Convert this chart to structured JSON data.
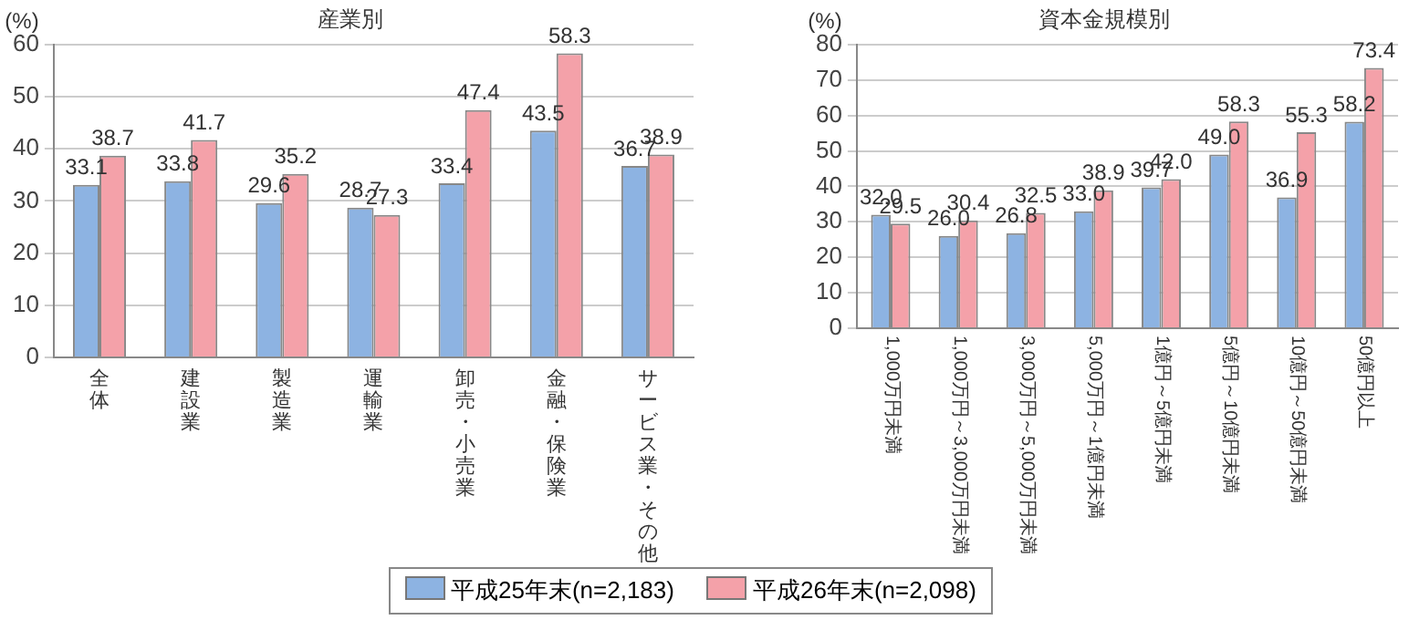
{
  "chart_data": [
    {
      "type": "bar",
      "title": "産業別",
      "ylabel": "(%)",
      "categories": [
        "全体",
        "建設業",
        "製造業",
        "運輸業",
        "卸売・小売業",
        "金融・保険業",
        "サービス業・その他"
      ],
      "series": [
        {
          "name": "平成25年末(n=2,183)",
          "color": "#8db3e2",
          "values": [
            33.1,
            33.8,
            29.6,
            28.7,
            33.4,
            43.5,
            36.7
          ]
        },
        {
          "name": "平成26年末(n=2,098)",
          "color": "#f4a1a9",
          "values": [
            38.7,
            41.7,
            35.2,
            27.3,
            47.4,
            58.3,
            38.9
          ]
        }
      ],
      "ylim": [
        0,
        60
      ],
      "yticks": [
        0,
        10,
        20,
        30,
        40,
        50,
        60
      ],
      "grid": "y",
      "data_labels": true,
      "legend": "bottom"
    },
    {
      "type": "bar",
      "title": "資本金規模別",
      "ylabel": "(%)",
      "categories": [
        "1,000万円未満",
        "1,000万円～3,000万円未満",
        "3,000万円～5,000万円未満",
        "5,000万円～1億円未満",
        "1億円～5億円未満",
        "5億円～10億円未満",
        "10億円～50億円未満",
        "50億円以上"
      ],
      "series": [
        {
          "name": "平成25年末(n=2,183)",
          "color": "#8db3e2",
          "values": [
            32.0,
            26.0,
            26.8,
            33.0,
            39.7,
            49.0,
            36.9,
            58.2
          ],
          "value_labels": [
            "32.0",
            "26.0",
            "26.8",
            "33.0",
            "39.7",
            "49.0",
            "36.9",
            "58.2"
          ]
        },
        {
          "name": "平成26年末(n=2,098)",
          "color": "#f4a1a9",
          "values": [
            29.5,
            30.4,
            32.5,
            38.9,
            42.0,
            58.3,
            55.3,
            73.4
          ],
          "value_labels": [
            "29.5",
            "30.4",
            "32.5",
            "38.9",
            "42.0",
            "58.3",
            "55.3",
            "73.4"
          ]
        }
      ],
      "ylim": [
        0,
        80
      ],
      "yticks": [
        0,
        10,
        20,
        30,
        40,
        50,
        60,
        70,
        80
      ],
      "grid": "y",
      "data_labels": true,
      "legend": "bottom"
    }
  ]
}
